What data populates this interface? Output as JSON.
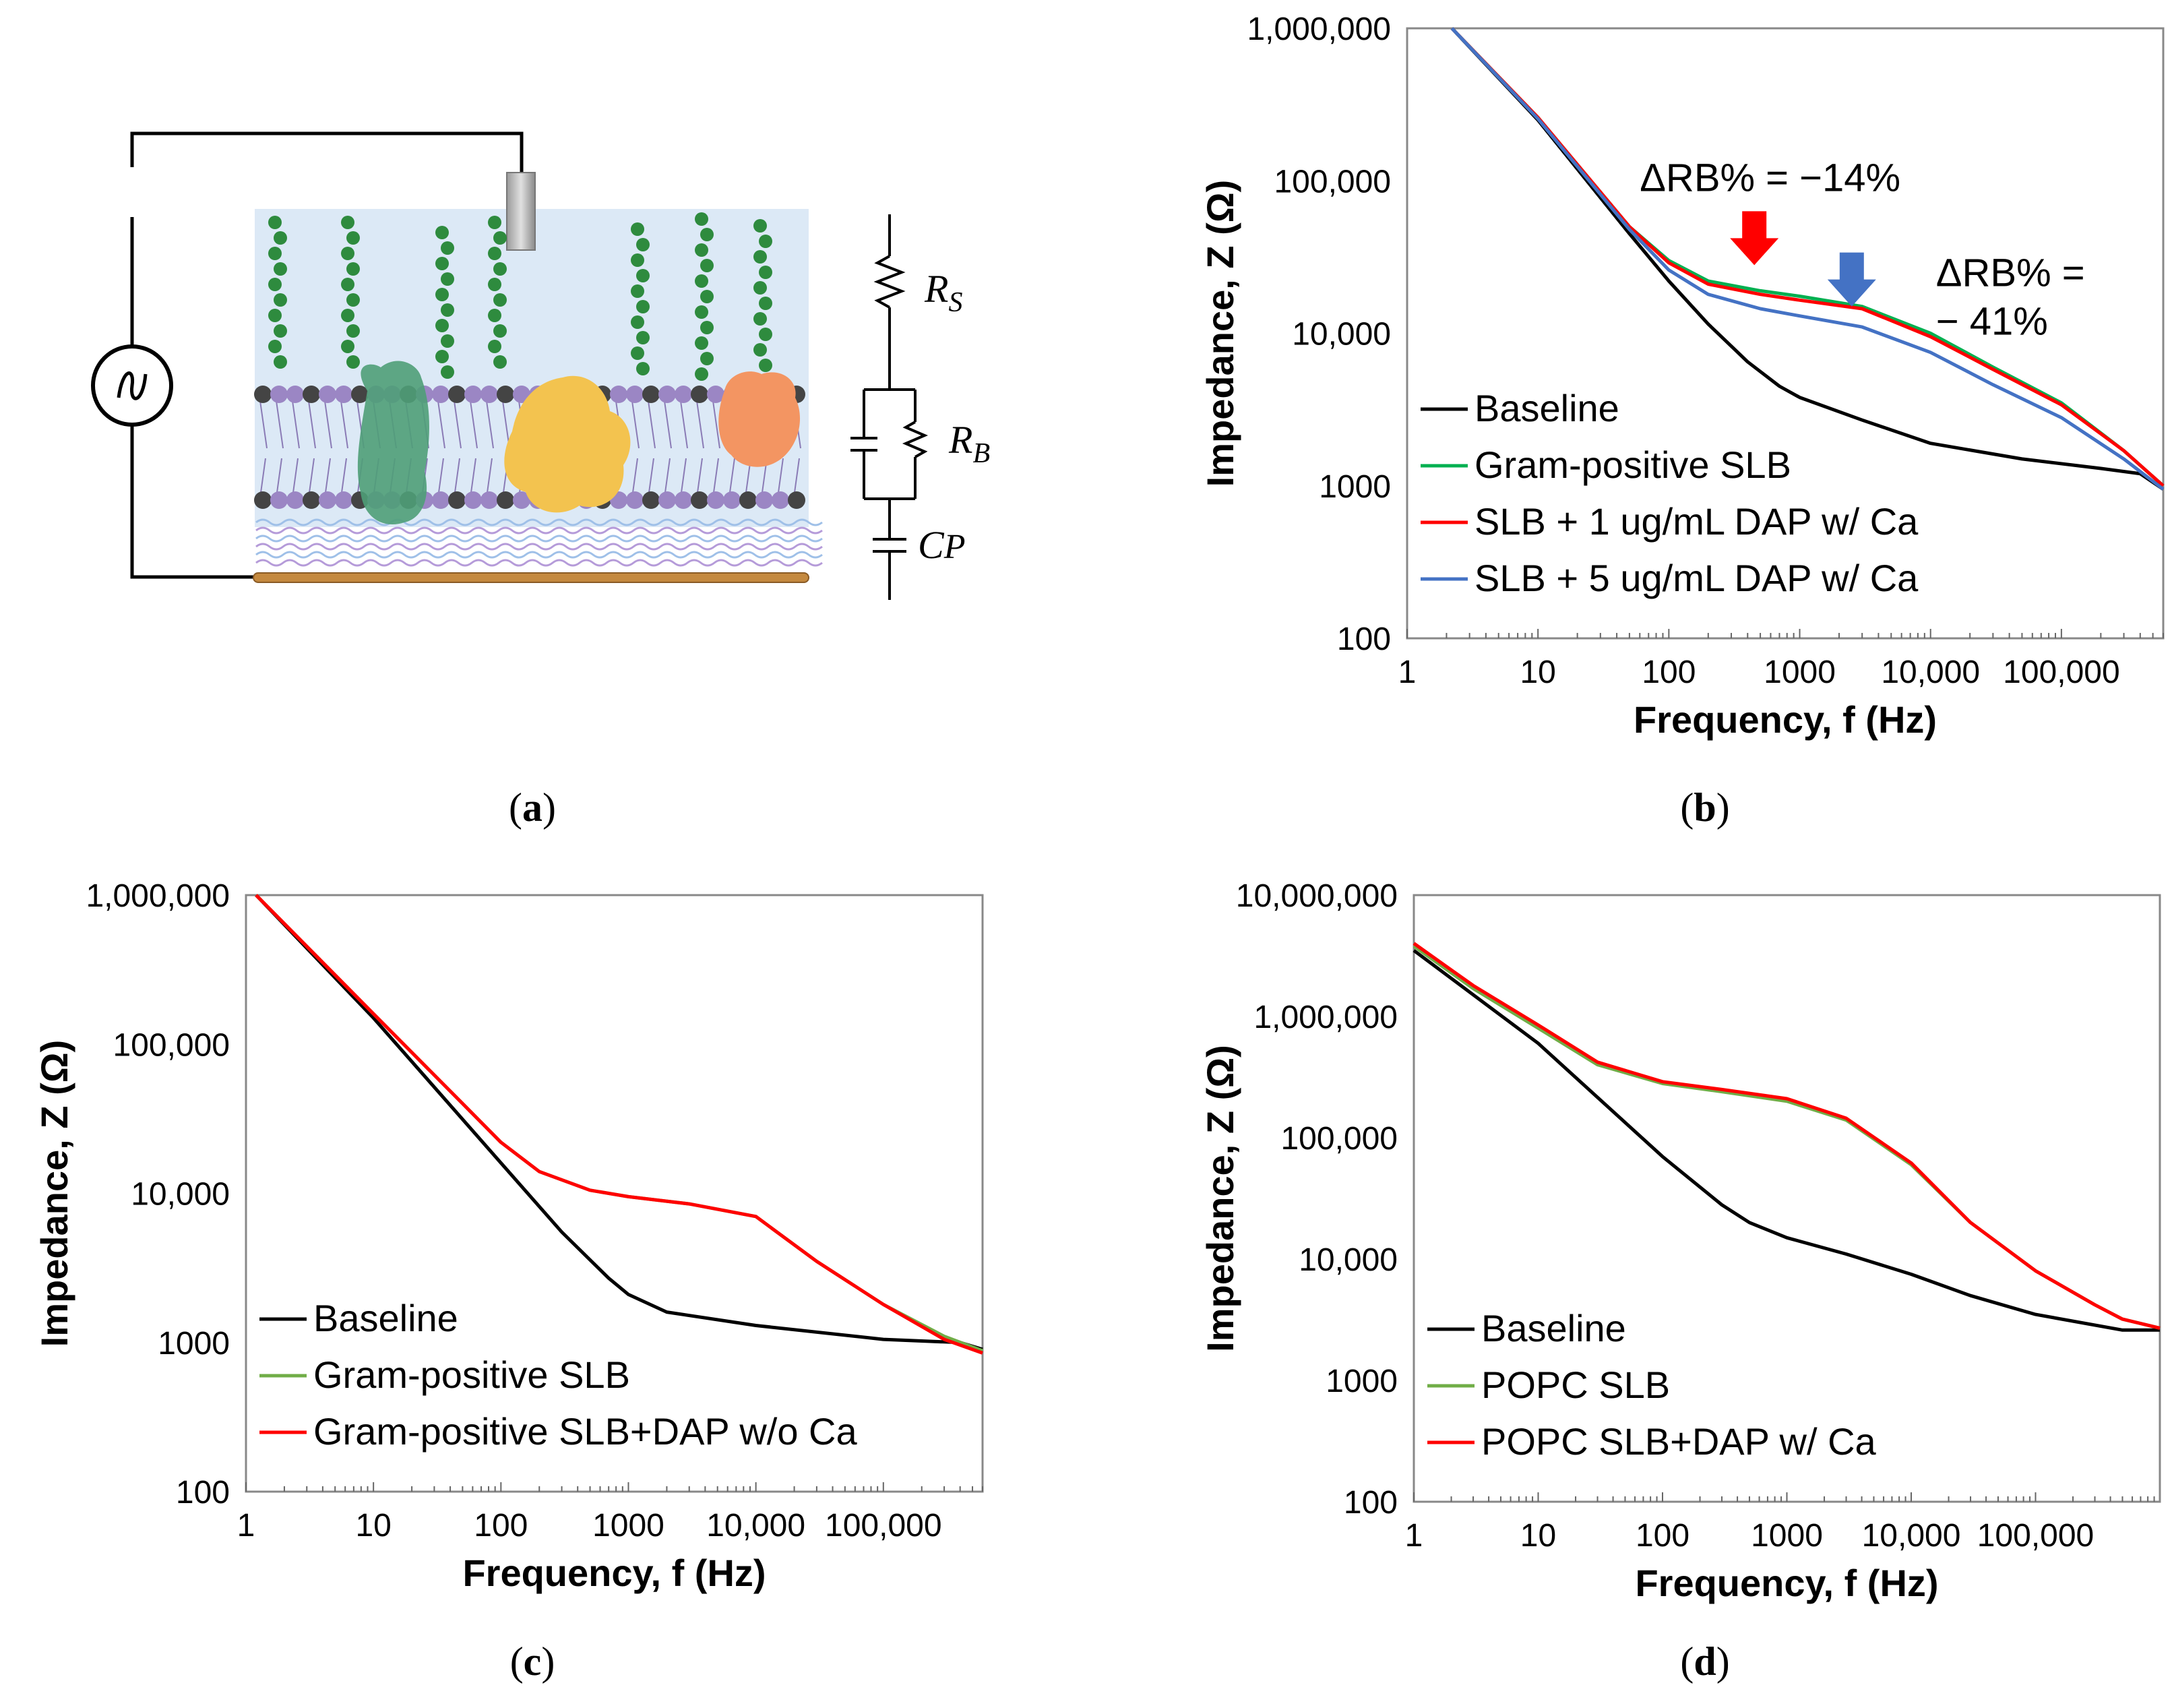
{
  "panel_labels": [
    "a",
    "b",
    "c",
    "d"
  ],
  "diagram": {
    "labels": [
      "R",
      "S",
      "R",
      "B",
      "C",
      "P"
    ]
  },
  "chart_data": [
    {
      "id": "b",
      "type": "line",
      "xscale": "log",
      "yscale": "log",
      "xlim": [
        1,
        600000
      ],
      "ylim": [
        100,
        1000000
      ],
      "xticks": [
        "1",
        "10",
        "100",
        "1000",
        "10,000",
        "100,000"
      ],
      "yticks": [
        "100",
        "1000",
        "10,000",
        "100,000",
        "1,000,000"
      ],
      "xlabel": "Frequency, f (Hz)",
      "ylabel": "Impedance, Z (Ω)",
      "legend_position": "bottom-left",
      "annotations": [
        {
          "text": "ΔRB% = −14%",
          "arrow_color": "#ff0000",
          "x": 450,
          "y": 28000
        },
        {
          "text": "ΔRB% = − 41%",
          "arrow_color": "#4472c4",
          "x": 2500,
          "y": 15000
        }
      ],
      "series": [
        {
          "name": "Baseline",
          "color": "#000000",
          "x": [
            2.2,
            10,
            50,
            100,
            200,
            400,
            700,
            1000,
            3000,
            10000,
            50000,
            200000,
            400000,
            600000
          ],
          "y": [
            1000000,
            250000,
            45000,
            22000,
            11500,
            6500,
            4500,
            3800,
            2700,
            1900,
            1500,
            1300,
            1200,
            950
          ]
        },
        {
          "name": "Gram-positive SLB",
          "color": "#00b050",
          "x": [
            2.2,
            10,
            50,
            100,
            200,
            500,
            1000,
            3000,
            10000,
            30000,
            100000,
            300000,
            600000
          ],
          "y": [
            1000000,
            260000,
            50000,
            30000,
            22000,
            19000,
            17500,
            15000,
            10000,
            6000,
            3500,
            1700,
            1000
          ]
        },
        {
          "name": "SLB + 1 ug/mL DAP w/ Ca",
          "color": "#ff0000",
          "x": [
            2.2,
            10,
            50,
            100,
            200,
            500,
            1000,
            3000,
            10000,
            30000,
            100000,
            300000,
            600000
          ],
          "y": [
            1000000,
            260000,
            50000,
            29000,
            21000,
            18000,
            16500,
            14500,
            9500,
            5800,
            3400,
            1700,
            1000
          ]
        },
        {
          "name": "SLB + 5 ug/mL DAP w/ Ca",
          "color": "#4472c4",
          "x": [
            2.2,
            10,
            50,
            100,
            200,
            500,
            1000,
            3000,
            10000,
            30000,
            100000,
            300000,
            600000
          ],
          "y": [
            1000000,
            255000,
            48000,
            26000,
            18000,
            14500,
            13000,
            11000,
            7500,
            4600,
            2800,
            1500,
            950
          ]
        }
      ]
    },
    {
      "id": "c",
      "type": "line",
      "xscale": "log",
      "yscale": "log",
      "xlim": [
        1,
        600000
      ],
      "ylim": [
        100,
        1000000
      ],
      "xticks": [
        "1",
        "10",
        "100",
        "1000",
        "10,000",
        "100,000"
      ],
      "yticks": [
        "100",
        "1000",
        "10,000",
        "100,000",
        "1,000,000"
      ],
      "xlabel": "Frequency, f (Hz)",
      "ylabel": "Impedance, Z (Ω)",
      "legend_position": "bottom-left",
      "series": [
        {
          "name": "Baseline",
          "color": "#000000",
          "x": [
            1.2,
            10,
            100,
            300,
            700,
            1000,
            2000,
            10000,
            100000,
            400000,
            600000
          ],
          "y": [
            1000000,
            150000,
            16000,
            5500,
            2700,
            2100,
            1600,
            1300,
            1050,
            1000,
            900
          ]
        },
        {
          "name": "Gram-positive SLB",
          "color": "#70ad47",
          "x": [
            1.2,
            10,
            50,
            100,
            200,
            500,
            1000,
            3000,
            10000,
            30000,
            100000,
            300000,
            600000
          ],
          "y": [
            1000000,
            160000,
            40000,
            22000,
            14000,
            10500,
            9500,
            8500,
            7000,
            3500,
            1800,
            1100,
            880
          ]
        },
        {
          "name": "Gram-positive SLB+DAP w/o Ca",
          "color": "#ff0000",
          "x": [
            1.2,
            10,
            50,
            100,
            200,
            500,
            1000,
            3000,
            10000,
            30000,
            100000,
            300000,
            600000
          ],
          "y": [
            1000000,
            160000,
            40000,
            22000,
            14000,
            10500,
            9500,
            8500,
            7000,
            3500,
            1800,
            1050,
            850
          ]
        }
      ]
    },
    {
      "id": "d",
      "type": "line",
      "xscale": "log",
      "yscale": "log",
      "xlim": [
        1,
        1000000
      ],
      "ylim": [
        100,
        10000000
      ],
      "xticks": [
        "1",
        "10",
        "100",
        "1000",
        "10,000",
        "100,000"
      ],
      "yticks": [
        "100",
        "1000",
        "10,000",
        "100,000",
        "1,000,000",
        "10,000,000"
      ],
      "xlabel": "Frequency, f (Hz)",
      "ylabel": "Impedance, Z (Ω)",
      "legend_position": "bottom-left",
      "series": [
        {
          "name": "Baseline",
          "color": "#000000",
          "x": [
            1,
            10,
            100,
            300,
            500,
            1000,
            3000,
            10000,
            30000,
            100000,
            500000,
            1000000
          ],
          "y": [
            3500000,
            600000,
            70000,
            28000,
            20000,
            15000,
            11000,
            7500,
            5000,
            3500,
            2600,
            2600
          ]
        },
        {
          "name": "POPC SLB",
          "color": "#70ad47",
          "x": [
            1,
            3,
            10,
            30,
            100,
            300,
            1000,
            3000,
            10000,
            30000,
            100000,
            300000,
            500000,
            1000000
          ],
          "y": [
            3800000,
            1700000,
            800000,
            400000,
            280000,
            240000,
            200000,
            140000,
            60000,
            20000,
            8000,
            4200,
            3200,
            2700
          ]
        },
        {
          "name": "POPC SLB+DAP w/ Ca",
          "color": "#ff0000",
          "x": [
            1,
            3,
            10,
            30,
            100,
            300,
            1000,
            3000,
            10000,
            30000,
            100000,
            300000,
            500000,
            1000000
          ],
          "y": [
            4000000,
            1800000,
            850000,
            420000,
            290000,
            250000,
            210000,
            145000,
            62000,
            20000,
            8000,
            4200,
            3200,
            2700
          ]
        }
      ]
    }
  ]
}
